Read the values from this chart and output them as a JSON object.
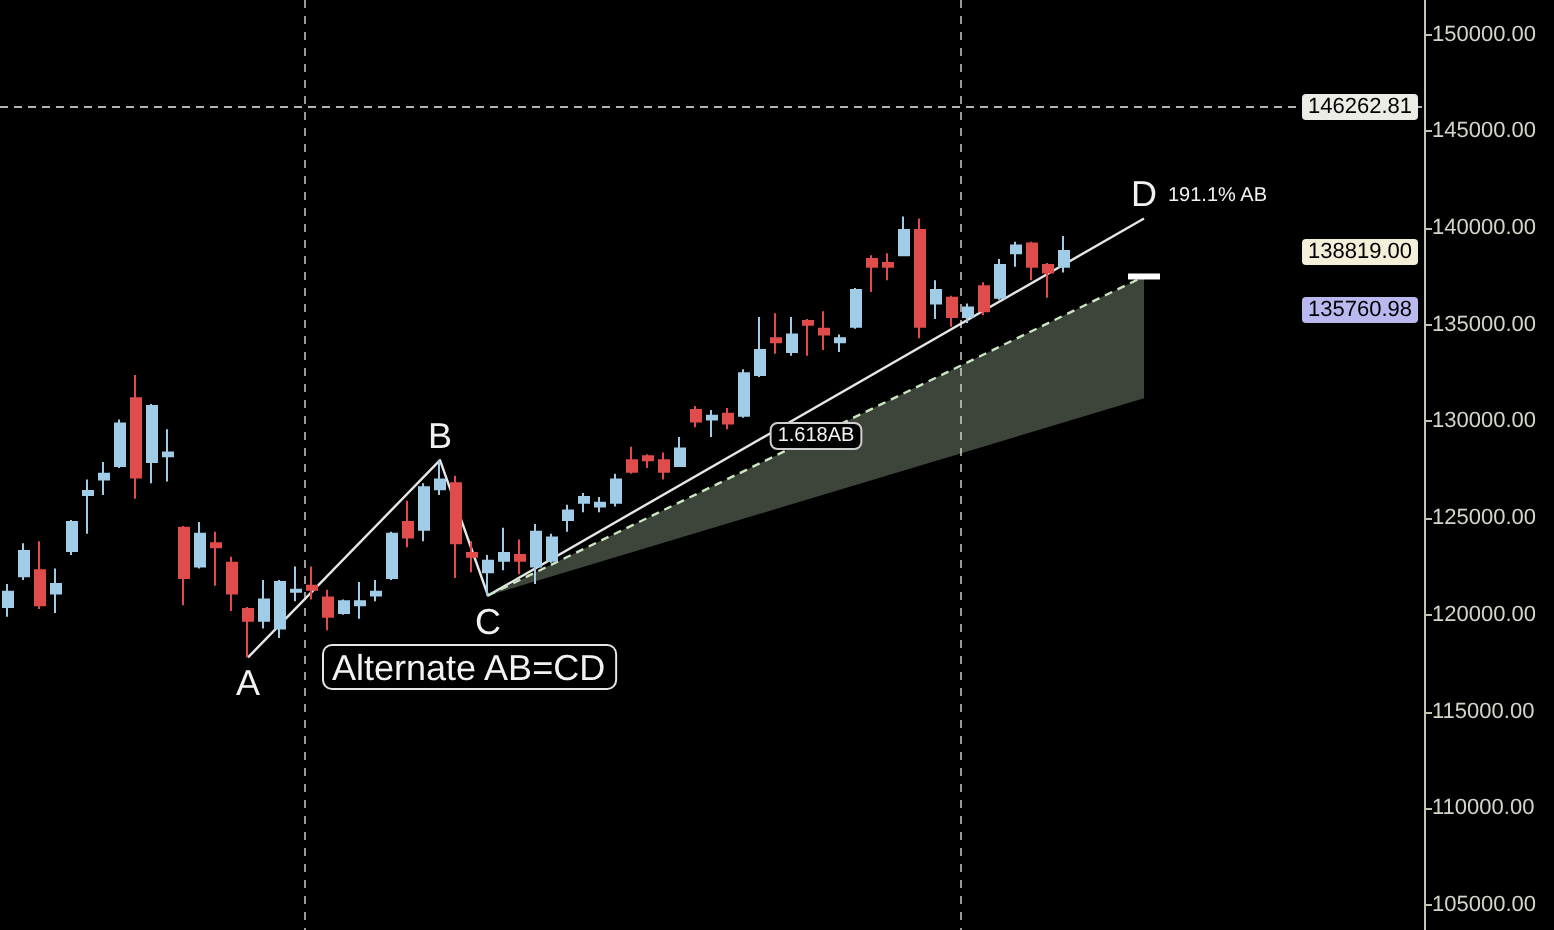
{
  "chart_data": {
    "type": "candlestick",
    "categories": [
      null,
      null,
      null,
      null,
      null,
      null,
      null,
      null,
      null,
      null,
      null,
      null,
      null,
      null,
      null,
      null,
      null,
      null,
      null,
      null,
      null,
      null,
      null,
      null,
      null,
      null,
      null,
      null,
      null,
      null,
      null,
      null,
      null,
      null,
      null,
      null,
      null,
      null,
      null,
      null,
      null,
      null,
      null,
      null,
      null,
      null,
      null,
      null,
      null,
      null,
      null,
      null,
      null,
      null,
      null,
      null,
      null,
      null,
      null,
      null,
      null,
      null,
      null,
      null,
      null,
      null,
      null,
      null,
      null,
      null,
      null,
      null,
      null,
      null,
      null,
      null,
      null,
      null,
      null,
      null,
      null,
      null,
      null,
      null,
      null,
      null,
      null,
      null,
      null
    ],
    "ohlc": [
      [
        120400,
        121600,
        119900,
        121200
      ],
      [
        122000,
        123700,
        121800,
        123300
      ],
      [
        122300,
        123800,
        120300,
        120500
      ],
      [
        121100,
        122400,
        120100,
        121600
      ],
      [
        123300,
        124900,
        123100,
        124800
      ],
      [
        126200,
        127000,
        124200,
        126400
      ],
      [
        127000,
        127900,
        126200,
        127300
      ],
      [
        127700,
        130100,
        127600,
        129900
      ],
      [
        131200,
        132400,
        126000,
        127100
      ],
      [
        127900,
        130900,
        126800,
        130800
      ],
      [
        128200,
        129600,
        126900,
        128400
      ],
      [
        124500,
        124600,
        120500,
        121900
      ],
      [
        122500,
        124800,
        122400,
        124200
      ],
      [
        123700,
        124300,
        121500,
        123500
      ],
      [
        122700,
        123000,
        120200,
        121100
      ],
      [
        120300,
        120400,
        117800,
        119700
      ],
      [
        119700,
        121800,
        119300,
        120800
      ],
      [
        119300,
        121800,
        118800,
        121700
      ],
      [
        121200,
        122500,
        120700,
        121300
      ],
      [
        121500,
        122500,
        120800,
        121300
      ],
      [
        120900,
        121300,
        119200,
        119900
      ],
      [
        120100,
        120800,
        120000,
        120700
      ],
      [
        120500,
        121700,
        119800,
        120700
      ],
      [
        121000,
        121800,
        120700,
        121200
      ],
      [
        121900,
        124300,
        121800,
        124200
      ],
      [
        124800,
        125900,
        123500,
        124000
      ],
      [
        124400,
        126800,
        123800,
        126600
      ],
      [
        126500,
        128000,
        126200,
        127000
      ],
      [
        126800,
        127200,
        121900,
        123700
      ],
      [
        123200,
        123800,
        122200,
        123000
      ],
      [
        122200,
        123100,
        121000,
        122800
      ],
      [
        122800,
        124500,
        122300,
        123200
      ],
      [
        123100,
        123900,
        122100,
        122800
      ],
      [
        122500,
        124700,
        121600,
        124300
      ],
      [
        122800,
        124200,
        122700,
        124000
      ],
      [
        124900,
        125700,
        124300,
        125400
      ],
      [
        125800,
        126300,
        125300,
        126100
      ],
      [
        125600,
        126100,
        125300,
        125800
      ],
      [
        125800,
        127300,
        125600,
        127000
      ],
      [
        128000,
        128700,
        127300,
        127400
      ],
      [
        128200,
        128300,
        127600,
        128000
      ],
      [
        128000,
        128400,
        127000,
        127400
      ],
      [
        127700,
        129200,
        127700,
        128600
      ],
      [
        130600,
        130800,
        129700,
        130000
      ],
      [
        130100,
        130600,
        129200,
        130300
      ],
      [
        130400,
        130700,
        129600,
        129900
      ],
      [
        130300,
        132700,
        130200,
        132500
      ],
      [
        132400,
        135400,
        132300,
        133700
      ],
      [
        134300,
        135600,
        133500,
        134100
      ],
      [
        133600,
        135400,
        133400,
        134500
      ],
      [
        135200,
        135300,
        133400,
        135000
      ],
      [
        134800,
        135700,
        133700,
        134500
      ],
      [
        134100,
        134500,
        133600,
        134300
      ],
      [
        134900,
        136900,
        134800,
        136800
      ],
      [
        138400,
        138600,
        136700,
        138000
      ],
      [
        138200,
        138700,
        137300,
        138000
      ],
      [
        138600,
        140600,
        138600,
        139900
      ],
      [
        139900,
        140500,
        134300,
        134900
      ],
      [
        136100,
        137300,
        135300,
        136800
      ],
      [
        136400,
        136500,
        134900,
        135400
      ],
      [
        135400,
        136100,
        135100,
        135900
      ],
      [
        137000,
        137200,
        135500,
        135700
      ],
      [
        136400,
        138400,
        136300,
        138100
      ],
      [
        138700,
        139300,
        138000,
        139100
      ],
      [
        139200,
        139300,
        137300,
        138000
      ],
      [
        138100,
        138200,
        136400,
        137700
      ],
      [
        138000,
        139600,
        137700,
        138819
      ],
      null,
      null,
      null,
      null,
      null,
      null,
      null,
      null,
      null,
      null,
      null,
      null,
      null,
      null,
      null,
      null,
      null,
      null,
      null,
      null,
      null,
      null
    ],
    "colors": [
      "#a0cce8",
      "#a0cce8",
      "#e04c4c",
      "#a0cce8",
      "#a0cce8",
      "#a0cce8",
      "#a0cce8",
      "#a0cce8",
      "#e04c4c",
      "#a0cce8",
      "#a0cce8",
      "#e04c4c",
      "#a0cce8",
      "#e04c4c",
      "#e04c4c",
      "#e04c4c",
      "#a0cce8",
      "#a0cce8",
      "#a0cce8",
      "#e04c4c",
      "#e04c4c",
      "#a0cce8",
      "#a0cce8",
      "#a0cce8",
      "#a0cce8",
      "#e04c4c",
      "#a0cce8",
      "#a0cce8",
      "#e04c4c",
      "#e04c4c",
      "#a0cce8",
      "#a0cce8",
      "#e04c4c",
      "#a0cce8",
      "#a0cce8",
      "#a0cce8",
      "#a0cce8",
      "#a0cce8",
      "#a0cce8",
      "#e04c4c",
      "#e04c4c",
      "#e04c4c",
      "#a0cce8",
      "#e04c4c",
      "#a0cce8",
      "#e04c4c",
      "#a0cce8",
      "#a0cce8",
      "#e04c4c",
      "#a0cce8",
      "#e04c4c",
      "#e04c4c",
      "#a0cce8",
      "#a0cce8",
      "#e04c4c",
      "#e04c4c",
      "#a0cce8",
      "#e04c4c",
      "#a0cce8",
      "#e04c4c",
      "#a0cce8",
      "#e04c4c",
      "#a0cce8",
      "#a0cce8",
      "#e04c4c",
      "#e04c4c",
      "#a0cce8",
      null,
      null,
      null,
      null,
      null,
      null,
      null,
      null,
      null,
      null,
      null,
      null,
      null,
      null,
      null,
      null,
      null,
      null,
      null,
      null,
      null,
      null
    ],
    "series": [
      {
        "type": "line",
        "color": "#e6e6e6",
        "line_style": "solid",
        "values": [
          null,
          null,
          null,
          null,
          null,
          null,
          null,
          null,
          null,
          null,
          null,
          null,
          null,
          null,
          null,
          117800,
          null,
          null,
          null,
          null,
          null,
          null,
          null,
          null,
          null,
          null,
          null,
          128000,
          null,
          null,
          121000,
          null,
          null,
          null,
          null,
          null,
          null,
          null,
          null,
          null,
          null,
          null,
          null,
          null,
          null,
          null,
          null,
          null,
          null,
          null,
          null,
          null,
          null,
          null,
          null,
          null,
          null,
          null,
          null,
          null,
          null,
          null,
          null,
          null,
          null,
          null,
          null,
          null,
          null,
          null,
          null,
          140500,
          null,
          null,
          null,
          null,
          null,
          null,
          null,
          null,
          null,
          null,
          null,
          null,
          null,
          null,
          null,
          null,
          null
        ],
        "value_labels": [
          null,
          null,
          null,
          null,
          null,
          null,
          null,
          null,
          null,
          null,
          null,
          null,
          null,
          null,
          null,
          "A",
          null,
          null,
          null,
          null,
          null,
          null,
          null,
          null,
          null,
          null,
          null,
          "B",
          null,
          null,
          "C",
          null,
          null,
          null,
          null,
          null,
          null,
          null,
          null,
          null,
          null,
          null,
          null,
          null,
          null,
          null,
          null,
          null,
          null,
          null,
          null,
          null,
          null,
          null,
          null,
          null,
          null,
          null,
          null,
          null,
          null,
          null,
          null,
          null,
          null,
          null,
          null,
          null,
          null,
          null,
          null,
          "D",
          null,
          null,
          null,
          null,
          null,
          null,
          null,
          null,
          null,
          null,
          null,
          null,
          null,
          null,
          null,
          null,
          null
        ]
      },
      {
        "type": "line",
        "color": "#cae6c0",
        "line_style": "dashed",
        "values": [
          null,
          null,
          null,
          null,
          null,
          null,
          null,
          null,
          null,
          null,
          null,
          null,
          null,
          null,
          null,
          null,
          null,
          null,
          null,
          null,
          null,
          null,
          null,
          null,
          null,
          null,
          null,
          null,
          null,
          null,
          121000,
          null,
          null,
          null,
          null,
          null,
          null,
          null,
          null,
          null,
          null,
          null,
          null,
          null,
          null,
          null,
          null,
          null,
          null,
          null,
          null,
          null,
          null,
          null,
          null,
          null,
          null,
          null,
          null,
          null,
          null,
          null,
          null,
          null,
          null,
          null,
          null,
          null,
          null,
          null,
          null,
          137500,
          null,
          null,
          null,
          null,
          null,
          null,
          null,
          null,
          null,
          null,
          null,
          null,
          null,
          null,
          null,
          null,
          null
        ],
        "upper": [
          null,
          null,
          null,
          null,
          null,
          null,
          null,
          null,
          null,
          null,
          null,
          null,
          null,
          null,
          null,
          null,
          null,
          null,
          null,
          null,
          null,
          null,
          null,
          null,
          null,
          null,
          null,
          null,
          null,
          null,
          121000,
          null,
          null,
          null,
          null,
          null,
          null,
          null,
          null,
          null,
          null,
          null,
          null,
          null,
          null,
          null,
          null,
          null,
          null,
          null,
          null,
          null,
          null,
          null,
          null,
          null,
          null,
          null,
          null,
          null,
          null,
          null,
          null,
          null,
          null,
          null,
          null,
          null,
          null,
          null,
          null,
          137500,
          null,
          null,
          null,
          null,
          null,
          null,
          null,
          null,
          null,
          null,
          null,
          null,
          null,
          null,
          null,
          null,
          null
        ],
        "lower": [
          null,
          null,
          null,
          null,
          null,
          null,
          null,
          null,
          null,
          null,
          null,
          null,
          null,
          null,
          null,
          null,
          null,
          null,
          null,
          null,
          null,
          null,
          null,
          null,
          null,
          null,
          null,
          null,
          null,
          null,
          121000,
          null,
          null,
          null,
          null,
          null,
          null,
          null,
          null,
          null,
          null,
          null,
          null,
          null,
          null,
          null,
          null,
          null,
          null,
          null,
          null,
          null,
          null,
          null,
          null,
          null,
          null,
          null,
          null,
          null,
          null,
          null,
          null,
          null,
          null,
          null,
          null,
          null,
          null,
          null,
          null,
          131200,
          null,
          null,
          null,
          null,
          null,
          null,
          null,
          null,
          null,
          null,
          null,
          null,
          null,
          null,
          null,
          null,
          null
        ]
      },
      {
        "type": "line",
        "color": "#ffffff",
        "line_style": "solid",
        "values": [
          null,
          null,
          null,
          null,
          null,
          null,
          null,
          null,
          null,
          null,
          null,
          null,
          null,
          null,
          null,
          null,
          null,
          null,
          null,
          null,
          null,
          null,
          null,
          null,
          null,
          null,
          null,
          null,
          null,
          null,
          null,
          null,
          null,
          null,
          null,
          null,
          null,
          null,
          null,
          null,
          null,
          null,
          null,
          null,
          null,
          null,
          null,
          null,
          null,
          null,
          null,
          null,
          null,
          null,
          null,
          null,
          null,
          null,
          null,
          null,
          null,
          null,
          null,
          null,
          null,
          null,
          null,
          null,
          null,
          null,
          137500,
          137500,
          137500,
          null,
          null,
          null,
          null,
          null,
          null,
          null,
          null,
          null,
          null,
          null,
          null,
          null,
          null,
          null,
          null
        ]
      }
    ],
    "ylim": [
      103700,
      151800
    ],
    "yticks": [
      {
        "value": 105000,
        "label": "105000.00"
      },
      {
        "value": 110000,
        "label": "110000.00"
      },
      {
        "value": 115000,
        "label": "115000.00"
      },
      {
        "value": 120000,
        "label": "120000.00"
      },
      {
        "value": 125000,
        "label": "125000.00"
      },
      {
        "value": 130000,
        "label": "130000.00"
      },
      {
        "value": 135000,
        "label": "135000.00"
      },
      {
        "value": 140000,
        "label": "140000.00"
      },
      {
        "value": 145000,
        "label": "145000.00"
      },
      {
        "value": 150000,
        "label": "150000.00"
      }
    ],
    "tick_labels": "y",
    "marker": "none",
    "ref_lines": [
      {
        "axis": "y",
        "value": 146262.81,
        "label": "146262.81",
        "color": "#b4b4b4",
        "line_style": "dashed"
      }
    ],
    "annotations": [
      "191.1% AB",
      "1.618AB",
      "Alternate AB=CD",
      "138819.00",
      "135760.98"
    ]
  }
}
